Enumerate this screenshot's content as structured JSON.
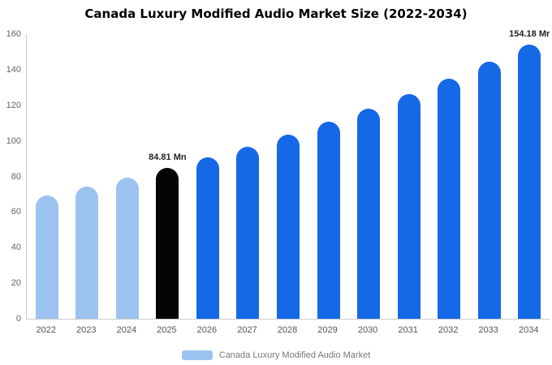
{
  "title": "Canada Luxury Modified Audio Market Size (2022-2034)",
  "colors": {
    "light_blue": "#9cc3f0",
    "primary_blue": "#1569e6",
    "highlight_black": "#050505",
    "axis_line": "#cccccc"
  },
  "legend": {
    "label": "Canada Luxury Modified Audio Market",
    "swatch_color": "#9cc3f0"
  },
  "chart_data": {
    "type": "bar",
    "title": "Canada Luxury Modified Audio Market Size (2022-2034)",
    "xlabel": "",
    "ylabel": "",
    "categories": [
      "2022",
      "2023",
      "2024",
      "2025",
      "2026",
      "2027",
      "2028",
      "2029",
      "2030",
      "2031",
      "2032",
      "2033",
      "2034"
    ],
    "values": [
      69.5,
      74.3,
      79.4,
      84.81,
      90.6,
      96.8,
      103.5,
      110.6,
      118.2,
      126.3,
      135.0,
      144.3,
      154.18
    ],
    "bar_colors": [
      "#9cc3f0",
      "#9cc3f0",
      "#9cc3f0",
      "#050505",
      "#1569e6",
      "#1569e6",
      "#1569e6",
      "#1569e6",
      "#1569e6",
      "#1569e6",
      "#1569e6",
      "#1569e6",
      "#1569e6"
    ],
    "annotations": [
      {
        "index": 3,
        "text": "84.81 Mn"
      },
      {
        "index": 12,
        "text": "154.18 Mr"
      }
    ],
    "ylim": [
      0,
      160
    ],
    "yticks": [
      0,
      20,
      40,
      60,
      80,
      100,
      120,
      140,
      160
    ],
    "grid": false,
    "legend_position": "bottom",
    "legend_entries": [
      "Canada Luxury Modified Audio Market"
    ]
  }
}
